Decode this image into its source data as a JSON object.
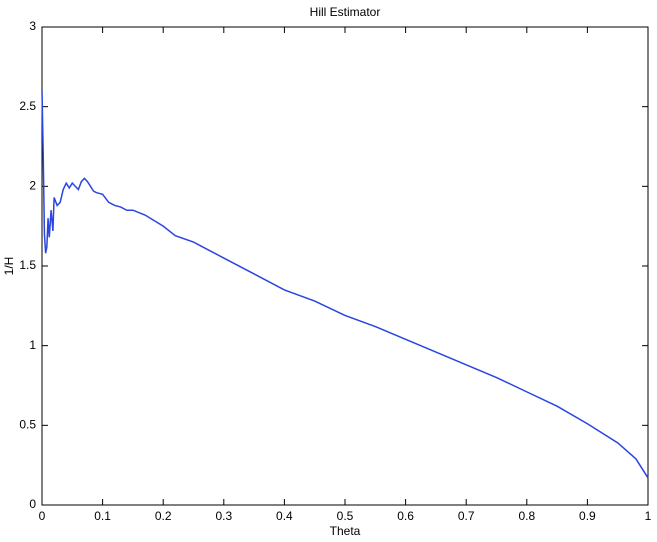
{
  "chart_data": {
    "type": "line",
    "title": "Hill Estimator",
    "x_label": "Theta",
    "y_label": "1/H",
    "series": [
      {
        "color": "#2a45e0",
        "x": [
          0,
          0.002,
          0.004,
          0.006,
          0.008,
          0.01,
          0.012,
          0.015,
          0.018,
          0.02,
          0.025,
          0.03,
          0.035,
          0.04,
          0.045,
          0.05,
          0.055,
          0.06,
          0.065,
          0.07,
          0.075,
          0.08,
          0.085,
          0.09,
          0.1,
          0.11,
          0.12,
          0.13,
          0.14,
          0.15,
          0.17,
          0.2,
          0.22,
          0.25,
          0.28,
          0.3,
          0.35,
          0.4,
          0.45,
          0.5,
          0.55,
          0.6,
          0.65,
          0.7,
          0.75,
          0.8,
          0.85,
          0.9,
          0.95,
          0.98,
          1.0
        ],
        "values": [
          2.6,
          2.2,
          1.7,
          1.58,
          1.62,
          1.8,
          1.68,
          1.85,
          1.72,
          1.93,
          1.88,
          1.9,
          1.98,
          2.02,
          1.99,
          2.02,
          2.0,
          1.98,
          2.03,
          2.05,
          2.03,
          2.0,
          1.97,
          1.96,
          1.95,
          1.9,
          1.88,
          1.87,
          1.85,
          1.85,
          1.82,
          1.75,
          1.69,
          1.65,
          1.59,
          1.55,
          1.45,
          1.35,
          1.28,
          1.19,
          1.12,
          1.04,
          0.96,
          0.88,
          0.8,
          0.71,
          0.62,
          0.51,
          0.39,
          0.29,
          0.17
        ]
      }
    ],
    "xlim": [
      0,
      1
    ],
    "ylim": [
      0,
      3
    ],
    "xticks": [
      0,
      0.1,
      0.2,
      0.3,
      0.4,
      0.5,
      0.6,
      0.7,
      0.8,
      0.9,
      1
    ],
    "yticks": [
      0,
      0.5,
      1,
      1.5,
      2,
      2.5,
      3
    ]
  }
}
